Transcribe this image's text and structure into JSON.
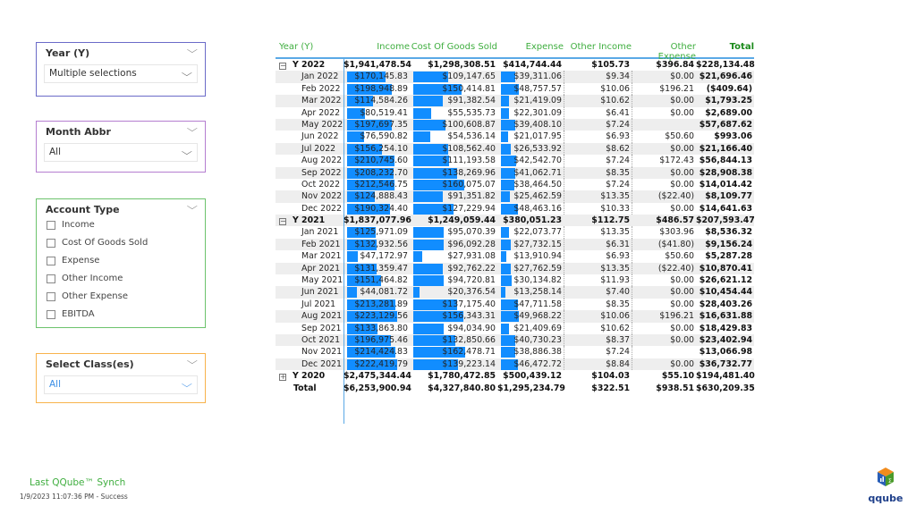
{
  "slicers": {
    "year": {
      "title": "Year (Y)",
      "value": "Multiple selections",
      "color": "#6b6bc8"
    },
    "month": {
      "title": "Month Abbr",
      "value": "All",
      "color": "#b57ed0"
    },
    "account": {
      "title": "Account Type",
      "options": [
        "Income",
        "Cost Of Goods Sold",
        "Expense",
        "Other Income",
        "Other Expense",
        "EBITDA"
      ],
      "color": "#6cc36c"
    },
    "class": {
      "title": "Select Class(es)",
      "value": "All",
      "color": "#f8b34c"
    }
  },
  "footer": {
    "sync_label": "Last QQube™ Synch",
    "sync_status": "1/9/2023 11:07:36 PM - Success",
    "logo_text": "qqube"
  },
  "table": {
    "headers": [
      "Year (Y)",
      "Income",
      "Cost Of Goods Sold",
      "Expense",
      "Other Income",
      "Other Expense",
      "Total"
    ],
    "rows": [
      {
        "type": "year",
        "expanded": true,
        "label": "Y 2022",
        "values": [
          "$1,941,478.54",
          "$1,298,308.51",
          "$414,744.44",
          "$105.73",
          "$396.84",
          "$228,134.48"
        ]
      },
      {
        "type": "month",
        "label": "Jan 2022",
        "values": [
          "$170,145.83",
          "$109,147.65",
          "$39,311.06",
          "$9.34",
          "$0.00",
          "$21,696.46"
        ]
      },
      {
        "type": "month",
        "label": "Feb 2022",
        "values": [
          "$198,948.89",
          "$150,414.81",
          "$48,757.57",
          "$10.06",
          "$196.21",
          "($409.64)"
        ]
      },
      {
        "type": "month",
        "label": "Mar 2022",
        "values": [
          "$114,584.26",
          "$91,382.54",
          "$21,419.09",
          "$10.62",
          "$0.00",
          "$1,793.25"
        ]
      },
      {
        "type": "month",
        "label": "Apr 2022",
        "values": [
          "$80,519.41",
          "$55,535.73",
          "$22,301.09",
          "$6.41",
          "$0.00",
          "$2,689.00"
        ]
      },
      {
        "type": "month",
        "label": "May 2022",
        "values": [
          "$197,697.35",
          "$100,608.87",
          "$39,408.10",
          "$7.24",
          "",
          "$57,687.62"
        ]
      },
      {
        "type": "month",
        "label": "Jun 2022",
        "values": [
          "$76,590.82",
          "$54,536.14",
          "$21,017.95",
          "$6.93",
          "$50.60",
          "$993.06"
        ]
      },
      {
        "type": "month",
        "label": "Jul 2022",
        "values": [
          "$156,254.10",
          "$108,562.40",
          "$26,533.92",
          "$8.62",
          "$0.00",
          "$21,166.40"
        ]
      },
      {
        "type": "month",
        "label": "Aug 2022",
        "values": [
          "$210,745.60",
          "$111,193.58",
          "$42,542.70",
          "$7.24",
          "$172.43",
          "$56,844.13"
        ]
      },
      {
        "type": "month",
        "label": "Sep 2022",
        "values": [
          "$208,232.70",
          "$138,269.96",
          "$41,062.71",
          "$8.35",
          "$0.00",
          "$28,908.38"
        ]
      },
      {
        "type": "month",
        "label": "Oct 2022",
        "values": [
          "$212,546.75",
          "$160,075.07",
          "$38,464.50",
          "$7.24",
          "$0.00",
          "$14,014.42"
        ]
      },
      {
        "type": "month",
        "label": "Nov 2022",
        "values": [
          "$124,888.43",
          "$91,351.82",
          "$25,462.59",
          "$13.35",
          "($22.40)",
          "$8,109.77"
        ]
      },
      {
        "type": "month",
        "label": "Dec 2022",
        "values": [
          "$190,324.40",
          "$127,229.94",
          "$48,463.16",
          "$10.33",
          "$0.00",
          "$14,641.63"
        ]
      },
      {
        "type": "year",
        "expanded": true,
        "label": "Y 2021",
        "values": [
          "$1,837,077.96",
          "$1,249,059.44",
          "$380,051.23",
          "$112.75",
          "$486.57",
          "$207,593.47"
        ]
      },
      {
        "type": "month",
        "label": "Jan 2021",
        "values": [
          "$125,971.09",
          "$95,070.39",
          "$22,073.77",
          "$13.35",
          "$303.96",
          "$8,536.32"
        ]
      },
      {
        "type": "month",
        "label": "Feb 2021",
        "values": [
          "$132,932.56",
          "$96,092.28",
          "$27,732.15",
          "$6.31",
          "($41.80)",
          "$9,156.24"
        ]
      },
      {
        "type": "month",
        "label": "Mar 2021",
        "values": [
          "$47,172.97",
          "$27,931.08",
          "$13,910.94",
          "$6.93",
          "$50.60",
          "$5,287.28"
        ]
      },
      {
        "type": "month",
        "label": "Apr 2021",
        "values": [
          "$131,359.47",
          "$92,762.22",
          "$27,762.59",
          "$13.35",
          "($22.40)",
          "$10,870.41"
        ]
      },
      {
        "type": "month",
        "label": "May 2021",
        "values": [
          "$151,464.82",
          "$94,720.81",
          "$30,134.82",
          "$11.93",
          "$0.00",
          "$26,621.12"
        ]
      },
      {
        "type": "month",
        "label": "Jun 2021",
        "values": [
          "$44,081.72",
          "$20,376.54",
          "$13,258.14",
          "$7.40",
          "$0.00",
          "$10,454.44"
        ]
      },
      {
        "type": "month",
        "label": "Jul 2021",
        "values": [
          "$213,281.89",
          "$137,175.40",
          "$47,711.58",
          "$8.35",
          "$0.00",
          "$28,403.26"
        ]
      },
      {
        "type": "month",
        "label": "Aug 2021",
        "values": [
          "$223,129.56",
          "$156,343.31",
          "$49,968.22",
          "$10.06",
          "$196.21",
          "$16,631.88"
        ]
      },
      {
        "type": "month",
        "label": "Sep 2021",
        "values": [
          "$133,863.80",
          "$94,034.90",
          "$21,409.69",
          "$10.62",
          "$0.00",
          "$18,429.83"
        ]
      },
      {
        "type": "month",
        "label": "Oct 2021",
        "values": [
          "$196,975.46",
          "$132,850.66",
          "$40,730.23",
          "$8.37",
          "$0.00",
          "$23,402.94"
        ]
      },
      {
        "type": "month",
        "label": "Nov 2021",
        "values": [
          "$214,424.83",
          "$162,478.71",
          "$38,886.38",
          "$7.24",
          "",
          "$13,066.98"
        ]
      },
      {
        "type": "month",
        "label": "Dec 2021",
        "values": [
          "$222,419.79",
          "$139,223.14",
          "$46,472.72",
          "$8.84",
          "$0.00",
          "$36,732.77"
        ]
      },
      {
        "type": "year",
        "expanded": false,
        "label": "Y 2020",
        "values": [
          "$2,475,344.44",
          "$1,780,472.85",
          "$500,439.12",
          "$104.03",
          "$55.10",
          "$194,481.40"
        ]
      },
      {
        "type": "total",
        "label": "Total",
        "values": [
          "$6,253,900.94",
          "$4,327,840.80",
          "$1,295,234.79",
          "$322.51",
          "$938.51",
          "$630,209.35"
        ]
      }
    ]
  },
  "colors": {
    "bar": "#118dff",
    "header_text": "#3fae3f",
    "total_header": "#1a8a1a"
  }
}
